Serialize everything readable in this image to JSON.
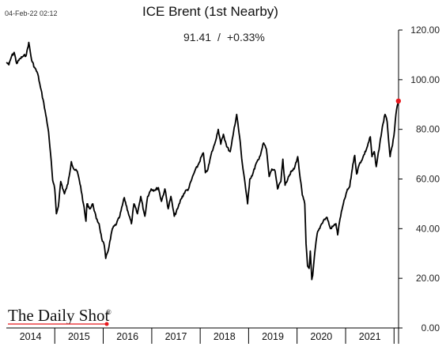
{
  "header": {
    "timestamp": "04-Feb-22 02:12",
    "title": "ICE Brent (1st Nearby)",
    "last_value": "91.41",
    "separator": "/",
    "change": "+0.33%"
  },
  "branding": {
    "logo_text": "The Daily Shot",
    "registered_mark": "®"
  },
  "colors": {
    "line": "#000000",
    "last_point": "#e8191e",
    "axis": "#000000",
    "background": "#ffffff"
  },
  "chart_data": {
    "type": "line",
    "title": "ICE Brent (1st Nearby)",
    "xlabel": "",
    "ylabel": "",
    "ylim": [
      0,
      120
    ],
    "xlim": [
      "2014-01-01",
      "2022-02-04"
    ],
    "y_axis_position": "right",
    "grid": false,
    "y_ticks": [
      "0.00",
      "20.00",
      "40.00",
      "60.00",
      "80.00",
      "100.00",
      "120.00"
    ],
    "x_categories": [
      "2014",
      "2015",
      "2016",
      "2017",
      "2018",
      "2019",
      "2020",
      "2021"
    ],
    "series": [
      {
        "values": [
          [
            "2014-01-02",
            107.0
          ],
          [
            "2014-01-20",
            106.0
          ],
          [
            "2014-02-10",
            109.5
          ],
          [
            "2014-03-01",
            111.0
          ],
          [
            "2014-03-20",
            106.5
          ],
          [
            "2014-04-15",
            108.5
          ],
          [
            "2014-05-10",
            109.5
          ],
          [
            "2014-06-01",
            110.0
          ],
          [
            "2014-06-19",
            115.0
          ],
          [
            "2014-07-10",
            108.0
          ],
          [
            "2014-08-01",
            105.0
          ],
          [
            "2014-08-25",
            102.5
          ],
          [
            "2014-09-15",
            97.0
          ],
          [
            "2014-10-05",
            92.0
          ],
          [
            "2014-10-25",
            86.0
          ],
          [
            "2014-11-15",
            79.0
          ],
          [
            "2014-12-01",
            70.0
          ],
          [
            "2014-12-16",
            59.5
          ],
          [
            "2015-01-01",
            56.0
          ],
          [
            "2015-01-13",
            46.0
          ],
          [
            "2015-01-28",
            49.0
          ],
          [
            "2015-02-15",
            59.0
          ],
          [
            "2015-03-15",
            54.0
          ],
          [
            "2015-04-10",
            58.0
          ],
          [
            "2015-05-06",
            67.0
          ],
          [
            "2015-05-25",
            64.0
          ],
          [
            "2015-06-20",
            63.0
          ],
          [
            "2015-07-15",
            57.0
          ],
          [
            "2015-08-05",
            50.0
          ],
          [
            "2015-08-24",
            43.0
          ],
          [
            "2015-09-01",
            50.0
          ],
          [
            "2015-09-25",
            48.0
          ],
          [
            "2015-10-15",
            50.0
          ],
          [
            "2015-11-10",
            44.0
          ],
          [
            "2015-12-01",
            42.0
          ],
          [
            "2015-12-21",
            36.0
          ],
          [
            "2016-01-10",
            33.0
          ],
          [
            "2016-01-20",
            28.0
          ],
          [
            "2016-02-15",
            33.0
          ],
          [
            "2016-03-10",
            40.0
          ],
          [
            "2016-04-10",
            42.0
          ],
          [
            "2016-05-05",
            45.0
          ],
          [
            "2016-06-08",
            52.5
          ],
          [
            "2016-07-05",
            47.0
          ],
          [
            "2016-08-01",
            42.0
          ],
          [
            "2016-08-20",
            50.0
          ],
          [
            "2016-09-15",
            46.0
          ],
          [
            "2016-10-10",
            53.0
          ],
          [
            "2016-11-10",
            45.0
          ],
          [
            "2016-12-01",
            53.0
          ],
          [
            "2016-12-28",
            56.0
          ],
          [
            "2017-01-20",
            55.5
          ],
          [
            "2017-02-20",
            56.5
          ],
          [
            "2017-03-15",
            51.0
          ],
          [
            "2017-04-10",
            56.0
          ],
          [
            "2017-05-05",
            48.0
          ],
          [
            "2017-05-25",
            53.0
          ],
          [
            "2017-06-20",
            45.0
          ],
          [
            "2017-07-15",
            48.0
          ],
          [
            "2017-08-10",
            52.0
          ],
          [
            "2017-09-10",
            55.0
          ],
          [
            "2017-10-05",
            56.0
          ],
          [
            "2017-10-30",
            60.0
          ],
          [
            "2017-11-20",
            63.0
          ],
          [
            "2017-12-20",
            66.0
          ],
          [
            "2018-01-10",
            69.0
          ],
          [
            "2018-01-25",
            70.5
          ],
          [
            "2018-02-09",
            62.5
          ],
          [
            "2018-03-01",
            64.0
          ],
          [
            "2018-03-25",
            70.0
          ],
          [
            "2018-04-20",
            74.0
          ],
          [
            "2018-05-17",
            80.0
          ],
          [
            "2018-06-05",
            74.0
          ],
          [
            "2018-06-25",
            78.0
          ],
          [
            "2018-07-20",
            73.0
          ],
          [
            "2018-08-15",
            71.0
          ],
          [
            "2018-09-10",
            79.0
          ],
          [
            "2018-10-03",
            86.0
          ],
          [
            "2018-10-25",
            77.0
          ],
          [
            "2018-11-15",
            66.0
          ],
          [
            "2018-12-01",
            60.0
          ],
          [
            "2018-12-24",
            50.0
          ],
          [
            "2019-01-10",
            60.0
          ],
          [
            "2019-02-01",
            62.0
          ],
          [
            "2019-02-25",
            66.0
          ],
          [
            "2019-03-20",
            68.0
          ],
          [
            "2019-04-24",
            74.5
          ],
          [
            "2019-05-15",
            72.0
          ],
          [
            "2019-06-05",
            61.0
          ],
          [
            "2019-06-25",
            64.0
          ],
          [
            "2019-07-20",
            63.0
          ],
          [
            "2019-08-07",
            56.0
          ],
          [
            "2019-09-01",
            59.0
          ],
          [
            "2019-09-16",
            68.0
          ],
          [
            "2019-10-03",
            57.5
          ],
          [
            "2019-10-28",
            61.0
          ],
          [
            "2019-11-20",
            63.0
          ],
          [
            "2019-12-10",
            64.0
          ],
          [
            "2020-01-06",
            69.0
          ],
          [
            "2020-01-25",
            60.0
          ],
          [
            "2020-02-10",
            53.5
          ],
          [
            "2020-02-28",
            50.0
          ],
          [
            "2020-03-09",
            34.0
          ],
          [
            "2020-03-20",
            25.0
          ],
          [
            "2020-04-01",
            24.0
          ],
          [
            "2020-04-10",
            31.0
          ],
          [
            "2020-04-21",
            19.5
          ],
          [
            "2020-04-28",
            21.0
          ],
          [
            "2020-05-15",
            31.0
          ],
          [
            "2020-06-01",
            38.0
          ],
          [
            "2020-06-25",
            41.0
          ],
          [
            "2020-07-20",
            43.5
          ],
          [
            "2020-08-15",
            44.5
          ],
          [
            "2020-09-08",
            40.0
          ],
          [
            "2020-09-30",
            41.0
          ],
          [
            "2020-10-20",
            42.0
          ],
          [
            "2020-11-02",
            37.5
          ],
          [
            "2020-11-20",
            44.0
          ],
          [
            "2020-12-15",
            50.0
          ],
          [
            "2021-01-10",
            55.0
          ],
          [
            "2021-02-01",
            57.0
          ],
          [
            "2021-02-25",
            66.0
          ],
          [
            "2021-03-11",
            69.5
          ],
          [
            "2021-03-25",
            62.0
          ],
          [
            "2021-04-15",
            66.0
          ],
          [
            "2021-05-10",
            68.5
          ],
          [
            "2021-06-10",
            72.5
          ],
          [
            "2021-07-06",
            77.0
          ],
          [
            "2021-07-19",
            69.0
          ],
          [
            "2021-08-05",
            71.0
          ],
          [
            "2021-08-20",
            65.0
          ],
          [
            "2021-09-15",
            74.0
          ],
          [
            "2021-10-05",
            81.0
          ],
          [
            "2021-10-25",
            86.0
          ],
          [
            "2021-11-10",
            83.0
          ],
          [
            "2021-11-26",
            72.5
          ],
          [
            "2021-12-02",
            69.0
          ],
          [
            "2021-12-20",
            73.5
          ],
          [
            "2022-01-05",
            80.0
          ],
          [
            "2022-01-20",
            88.0
          ],
          [
            "2022-02-03",
            91.41
          ]
        ]
      }
    ],
    "last_point": {
      "x": "2022-02-03",
      "y": 91.41
    }
  }
}
